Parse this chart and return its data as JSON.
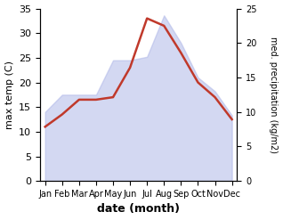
{
  "months": [
    "Jan",
    "Feb",
    "Mar",
    "Apr",
    "May",
    "Jun",
    "Jul",
    "Aug",
    "Sep",
    "Oct",
    "Nov",
    "Dec"
  ],
  "max_temp": [
    11,
    13.5,
    16.5,
    16.5,
    17,
    23,
    33,
    31.5,
    26,
    20,
    17,
    12.5
  ],
  "precipitation": [
    10,
    12.5,
    12.5,
    12.5,
    17.5,
    17.5,
    18,
    24,
    20,
    15,
    13,
    9.5
  ],
  "temp_color": "#c0392b",
  "precip_fill_color": "#b0b8e8",
  "precip_fill_alpha": 0.55,
  "temp_ylim": [
    0,
    35
  ],
  "precip_ylim": [
    0,
    25
  ],
  "temp_yticks": [
    0,
    5,
    10,
    15,
    20,
    25,
    30,
    35
  ],
  "precip_yticks": [
    0,
    5,
    10,
    15,
    20,
    25
  ],
  "xlabel": "date (month)",
  "ylabel_left": "max temp (C)",
  "ylabel_right": "med. precipitation (kg/m2)",
  "background_color": "#ffffff",
  "line_width": 1.8,
  "temp_scale_max": 35,
  "precip_scale_max": 25
}
